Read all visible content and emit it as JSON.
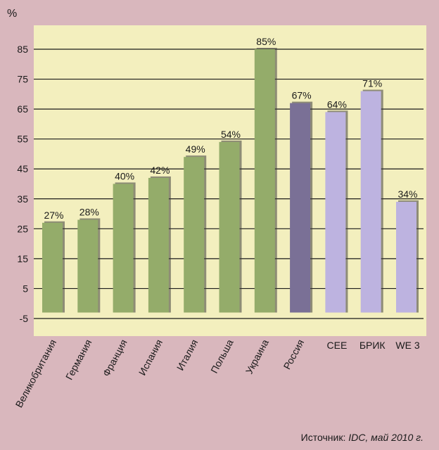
{
  "chart_data": {
    "type": "bar",
    "unit_label": "%",
    "categories": [
      "Великобритания",
      "Германия",
      "Франция",
      "Испания",
      "Италия",
      "Польша",
      "Украина",
      "Россия",
      "CEE",
      "БРИК",
      "WE 3"
    ],
    "values": [
      27,
      28,
      40,
      42,
      49,
      54,
      85,
      67,
      64,
      71,
      34
    ],
    "value_labels": [
      "27%",
      "28%",
      "40%",
      "42%",
      "49%",
      "54%",
      "85%",
      "67%",
      "64%",
      "71%",
      "34%"
    ],
    "rotated_labels": [
      true,
      true,
      true,
      true,
      true,
      true,
      true,
      true,
      false,
      false,
      false
    ],
    "bar_colors": [
      "#94ac6a",
      "#94ac6a",
      "#94ac6a",
      "#94ac6a",
      "#94ac6a",
      "#94ac6a",
      "#94ac6a",
      "#7a7096",
      "#bdb3e0",
      "#bdb3e0",
      "#bdb3e0"
    ],
    "yticks": [
      -5,
      5,
      15,
      25,
      35,
      45,
      55,
      65,
      75,
      85
    ],
    "ylim": [
      -5,
      90
    ],
    "grid": true,
    "legend": "none",
    "plot_background": "#f3efbe",
    "page_background": "#d9b7bd"
  },
  "source": {
    "prefix": "Источник: ",
    "italic": "IDC, май 2010 г."
  }
}
